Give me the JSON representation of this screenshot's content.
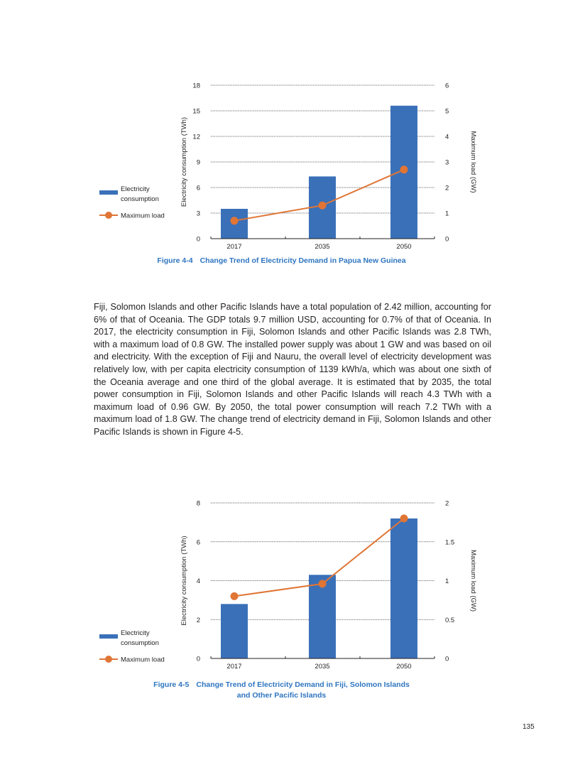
{
  "chart_data": [
    {
      "type": "bar+line",
      "title": "Change Trend of Electricity Demand in Papua New Guinea",
      "figure_number": "Figure 4-4",
      "categories": [
        "2017",
        "2035",
        "2050"
      ],
      "ylabel": "Electricity consumption (TWh)",
      "y2label": "Maximum load (GW)",
      "ylim": [
        0,
        18
      ],
      "yticks": [
        "0",
        "3",
        "6",
        "9",
        "12",
        "15",
        "18"
      ],
      "y2lim": [
        0,
        6
      ],
      "y2ticks": [
        "0",
        "1",
        "2",
        "3",
        "4",
        "5",
        "6"
      ],
      "grid": true,
      "legend_placement": "left",
      "series": [
        {
          "name": "Electricity consumption",
          "type": "bar",
          "axis": "left",
          "color": "#3a70b8",
          "values": [
            3.5,
            7.3,
            15.6
          ]
        },
        {
          "name": "Maximum load",
          "type": "line",
          "axis": "right",
          "color": "#e07535",
          "values": [
            0.7,
            1.3,
            2.7
          ]
        }
      ]
    },
    {
      "type": "bar+line",
      "title": "Change Trend of Electricity Demand in Fiji, Solomon Islands",
      "title_line2": "and Other Pacific Islands",
      "figure_number": "Figure 4-5",
      "categories": [
        "2017",
        "2035",
        "2050"
      ],
      "ylabel": "Electricity consumption (TWh)",
      "y2label": "Maximum load (GW)",
      "ylim": [
        0,
        8
      ],
      "yticks": [
        "0",
        "2",
        "4",
        "6",
        "8"
      ],
      "y2lim": [
        0,
        2
      ],
      "y2ticks": [
        "0",
        "0.5",
        "1",
        "1.5",
        "2"
      ],
      "grid": true,
      "legend_placement": "left",
      "series": [
        {
          "name": "Electricity consumption",
          "type": "bar",
          "axis": "left",
          "color": "#3a70b8",
          "values": [
            2.8,
            4.3,
            7.2
          ]
        },
        {
          "name": "Maximum load",
          "type": "line",
          "axis": "right",
          "color": "#e07535",
          "values": [
            0.8,
            0.96,
            1.8
          ]
        }
      ]
    }
  ],
  "legend": {
    "bar_line1": "Electricity",
    "bar_line2": "consumption",
    "line": "Maximum load"
  },
  "body_text": "Fiji, Solomon Islands and other Pacific Islands have a total population of 2.42 million, accounting for 6% of that of Oceania. The GDP totals 9.7 million USD, accounting for 0.7% of that of Oceania. In 2017, the electricity consumption in Fiji, Solomon Islands and other Pacific Islands was 2.8 TWh, with a maximum load of 0.8 GW. The installed power supply was about 1 GW and was based on oil and electricity. With the exception of Fiji and Nauru, the overall level of electricity development was relatively low, with per capita electricity consumption of 1139 kWh/a, which was about one sixth of the Oceania average and one third of the global average. It is estimated that by 2035, the total power consumption in Fiji, Solomon Islands and other Pacific Islands will reach 4.3 TWh with a maximum load of 0.96 GW. By 2050, the total power consumption will reach 7.2 TWh with a maximum load of 1.8 GW. The change trend of electricity demand in Fiji, Solomon Islands and other Pacific Islands is shown in Figure 4-5.",
  "page_number": "135"
}
